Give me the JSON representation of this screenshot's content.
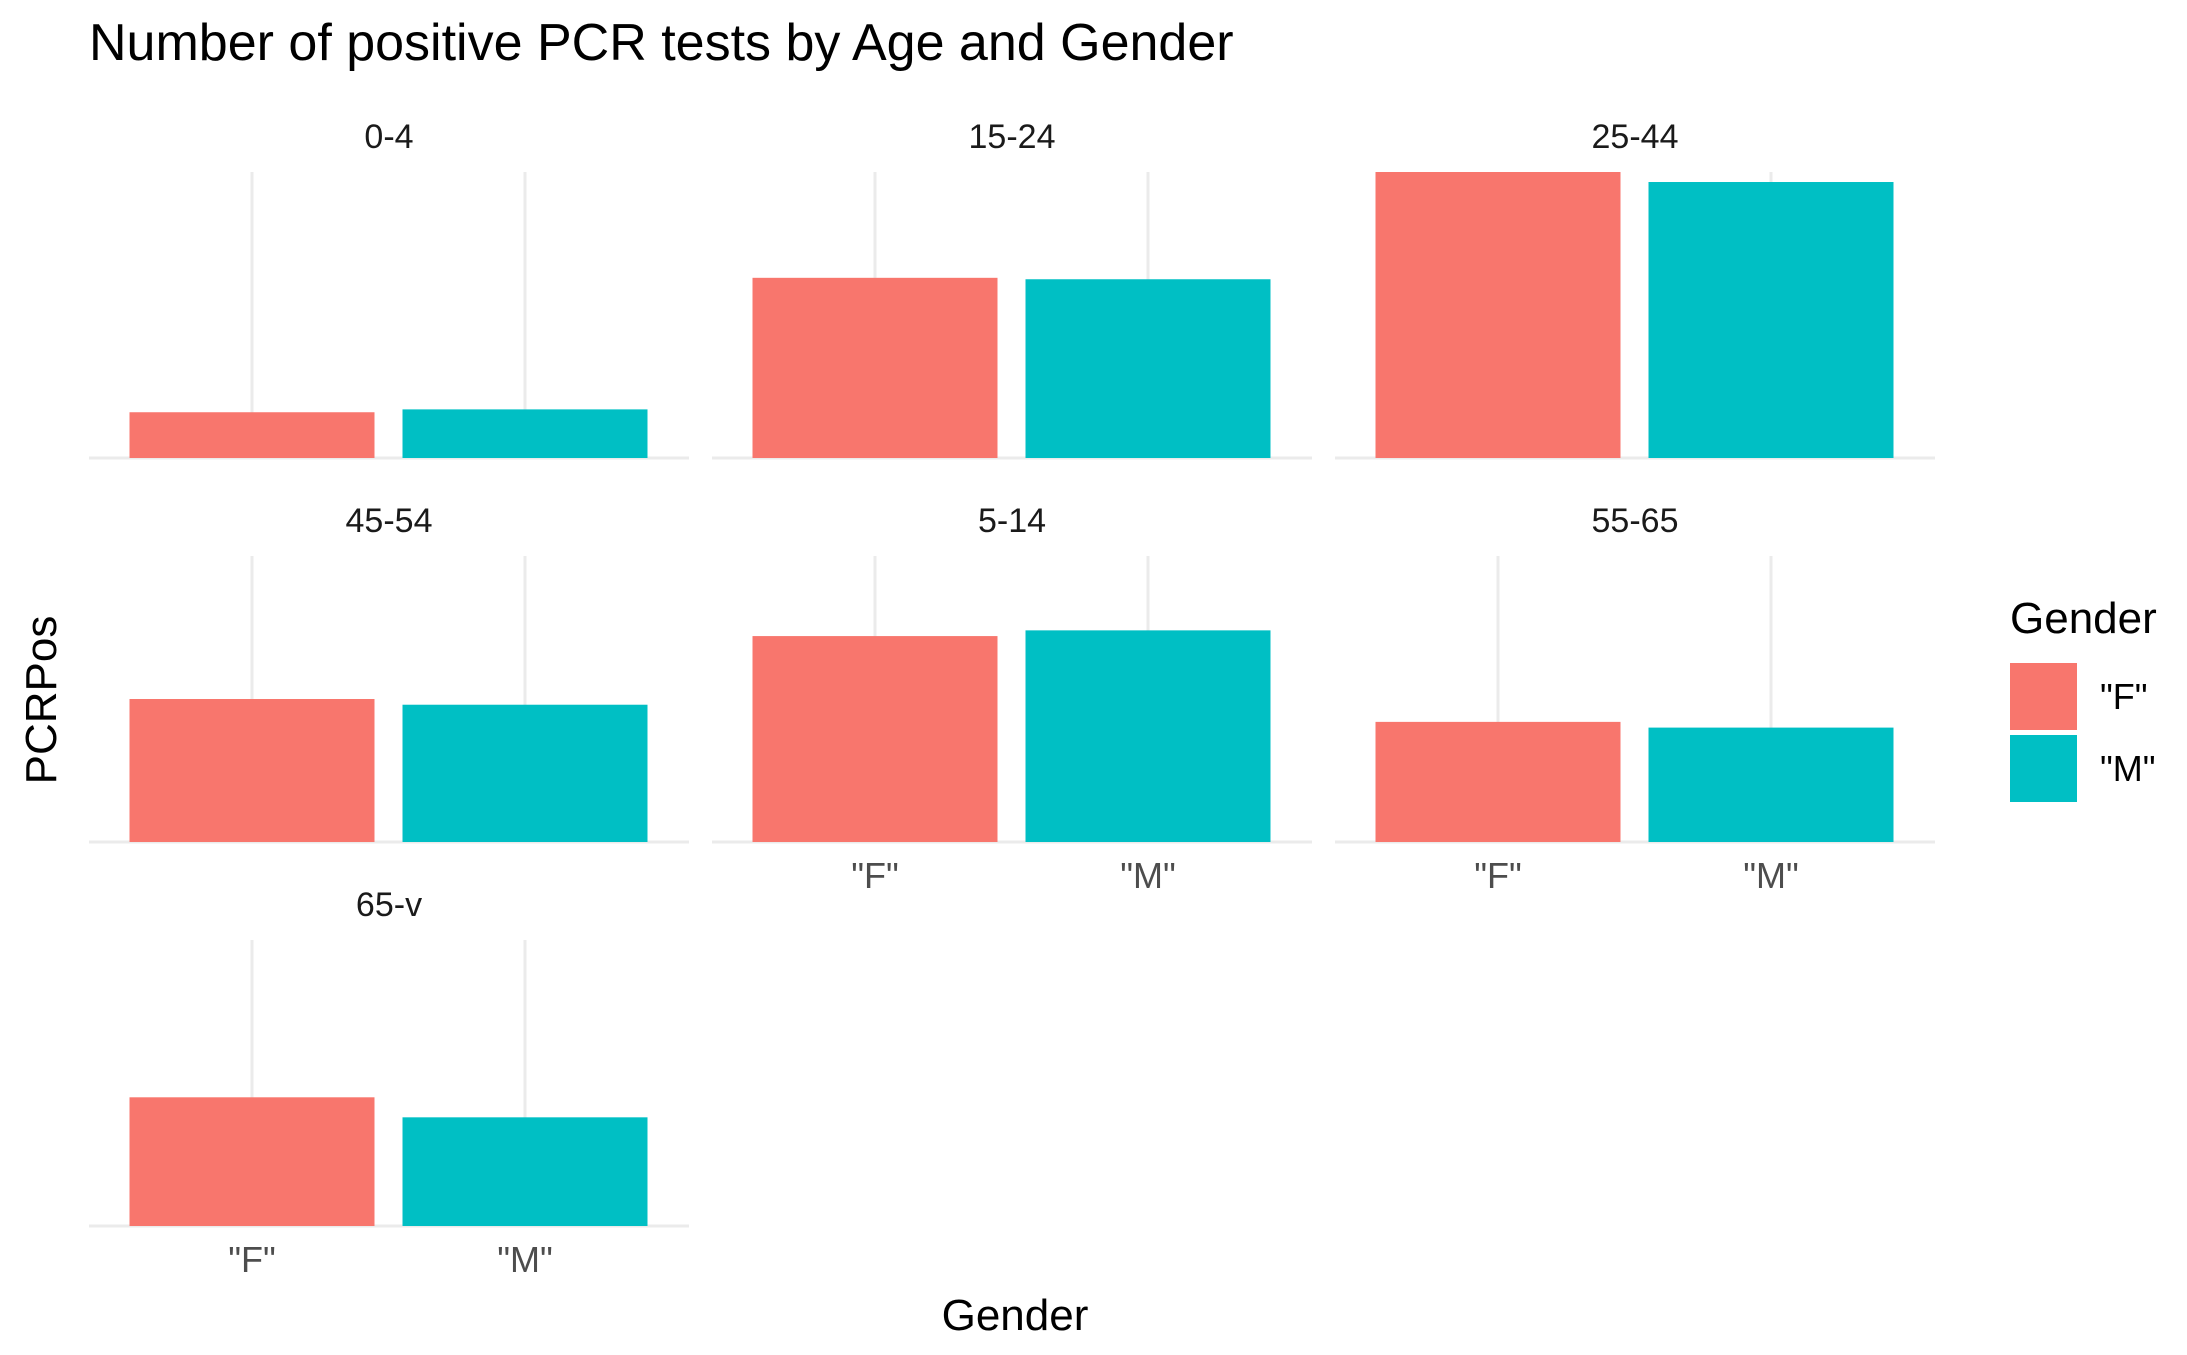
{
  "chart_data": {
    "type": "bar",
    "title": "Number of positive PCR tests by Age and Gender",
    "xlabel": "Gender",
    "ylabel": "PCRPos",
    "categories": [
      "\"F\"",
      "\"M\""
    ],
    "grid": "vertical major gridlines only",
    "y_ticks_shown": false,
    "legend": {
      "title": "Gender",
      "position": "right",
      "entries": [
        {
          "label": "\"F\"",
          "color": "#F8766D"
        },
        {
          "label": "\"M\"",
          "color": "#00BFC4"
        }
      ]
    },
    "facets": [
      {
        "label": "0-4",
        "values": [
          16,
          17
        ]
      },
      {
        "label": "15-24",
        "values": [
          63,
          62.5
        ]
      },
      {
        "label": "25-44",
        "values": [
          100,
          96.5
        ]
      },
      {
        "label": "45-54",
        "values": [
          50,
          48
        ]
      },
      {
        "label": "5-14",
        "values": [
          72,
          74
        ]
      },
      {
        "label": "55-65",
        "values": [
          42,
          40
        ]
      },
      {
        "label": "65-v",
        "values": [
          45,
          38
        ]
      }
    ],
    "ylim": [
      0,
      100
    ]
  }
}
